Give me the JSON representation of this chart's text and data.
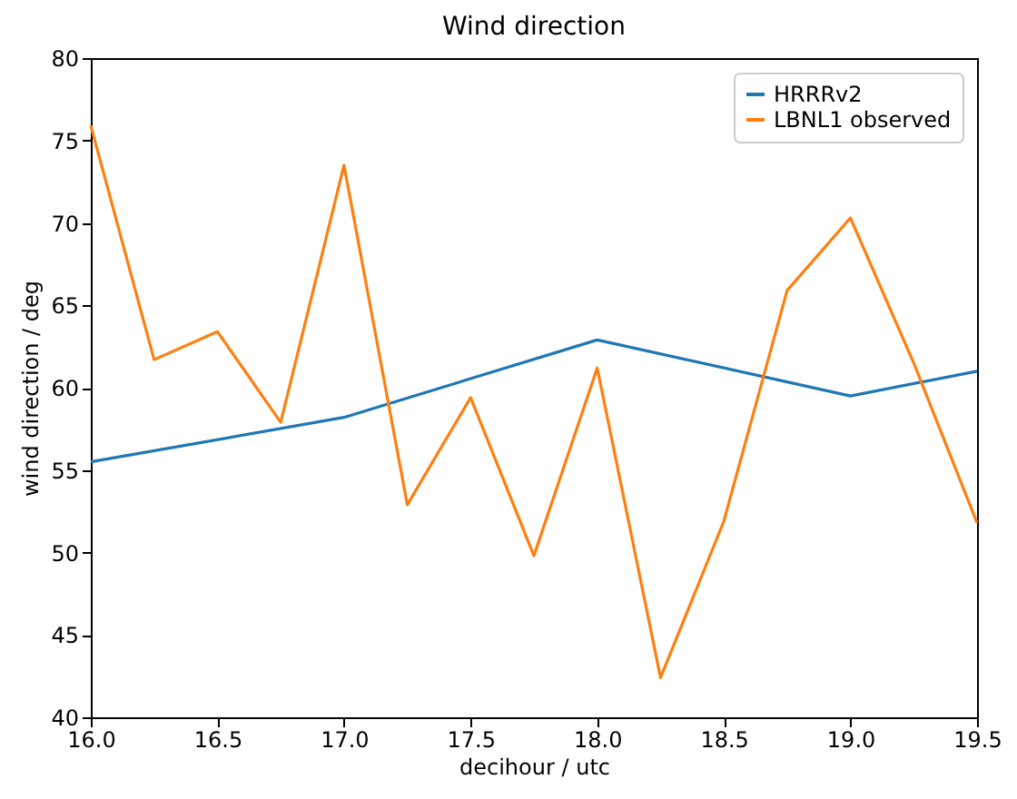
{
  "chart_data": {
    "type": "line",
    "title": "Wind direction",
    "xlabel": "decihour / utc",
    "ylabel": "wind direction / deg",
    "series": [
      {
        "name": "HRRRv2",
        "color": "#1f77b4",
        "x": [
          16.0,
          17.0,
          18.0,
          19.0,
          19.5
        ],
        "values": [
          55.5,
          58.2,
          62.9,
          59.5,
          61.0
        ]
      },
      {
        "name": "LBNL1 observed",
        "color": "#ff7f0e",
        "x": [
          16.0,
          16.25,
          16.5,
          16.75,
          17.0,
          17.25,
          17.5,
          17.75,
          18.0,
          18.25,
          18.5,
          18.75,
          19.0,
          19.25,
          19.5
        ],
        "values": [
          75.9,
          61.7,
          63.4,
          57.9,
          73.5,
          52.9,
          59.4,
          49.8,
          61.2,
          42.4,
          51.9,
          65.9,
          70.3,
          61.5,
          51.8
        ]
      }
    ],
    "xlim": [
      16.0,
      19.5
    ],
    "xticks": [
      {
        "value": 16,
        "label": "16.0"
      },
      {
        "value": 16.5,
        "label": "16.5"
      },
      {
        "value": 17,
        "label": "17.0"
      },
      {
        "value": 17.5,
        "label": "17.5"
      },
      {
        "value": 18,
        "label": "18.0"
      },
      {
        "value": 18.5,
        "label": "18.5"
      },
      {
        "value": 19,
        "label": "19.0"
      },
      {
        "value": 19.5,
        "label": "19.5"
      }
    ],
    "ylim": [
      40,
      80
    ],
    "yticks": [
      40,
      45,
      50,
      55,
      60,
      65,
      70,
      75,
      80
    ],
    "grid": false,
    "legend": "top right",
    "marker": "none",
    "line_style": "solid"
  }
}
